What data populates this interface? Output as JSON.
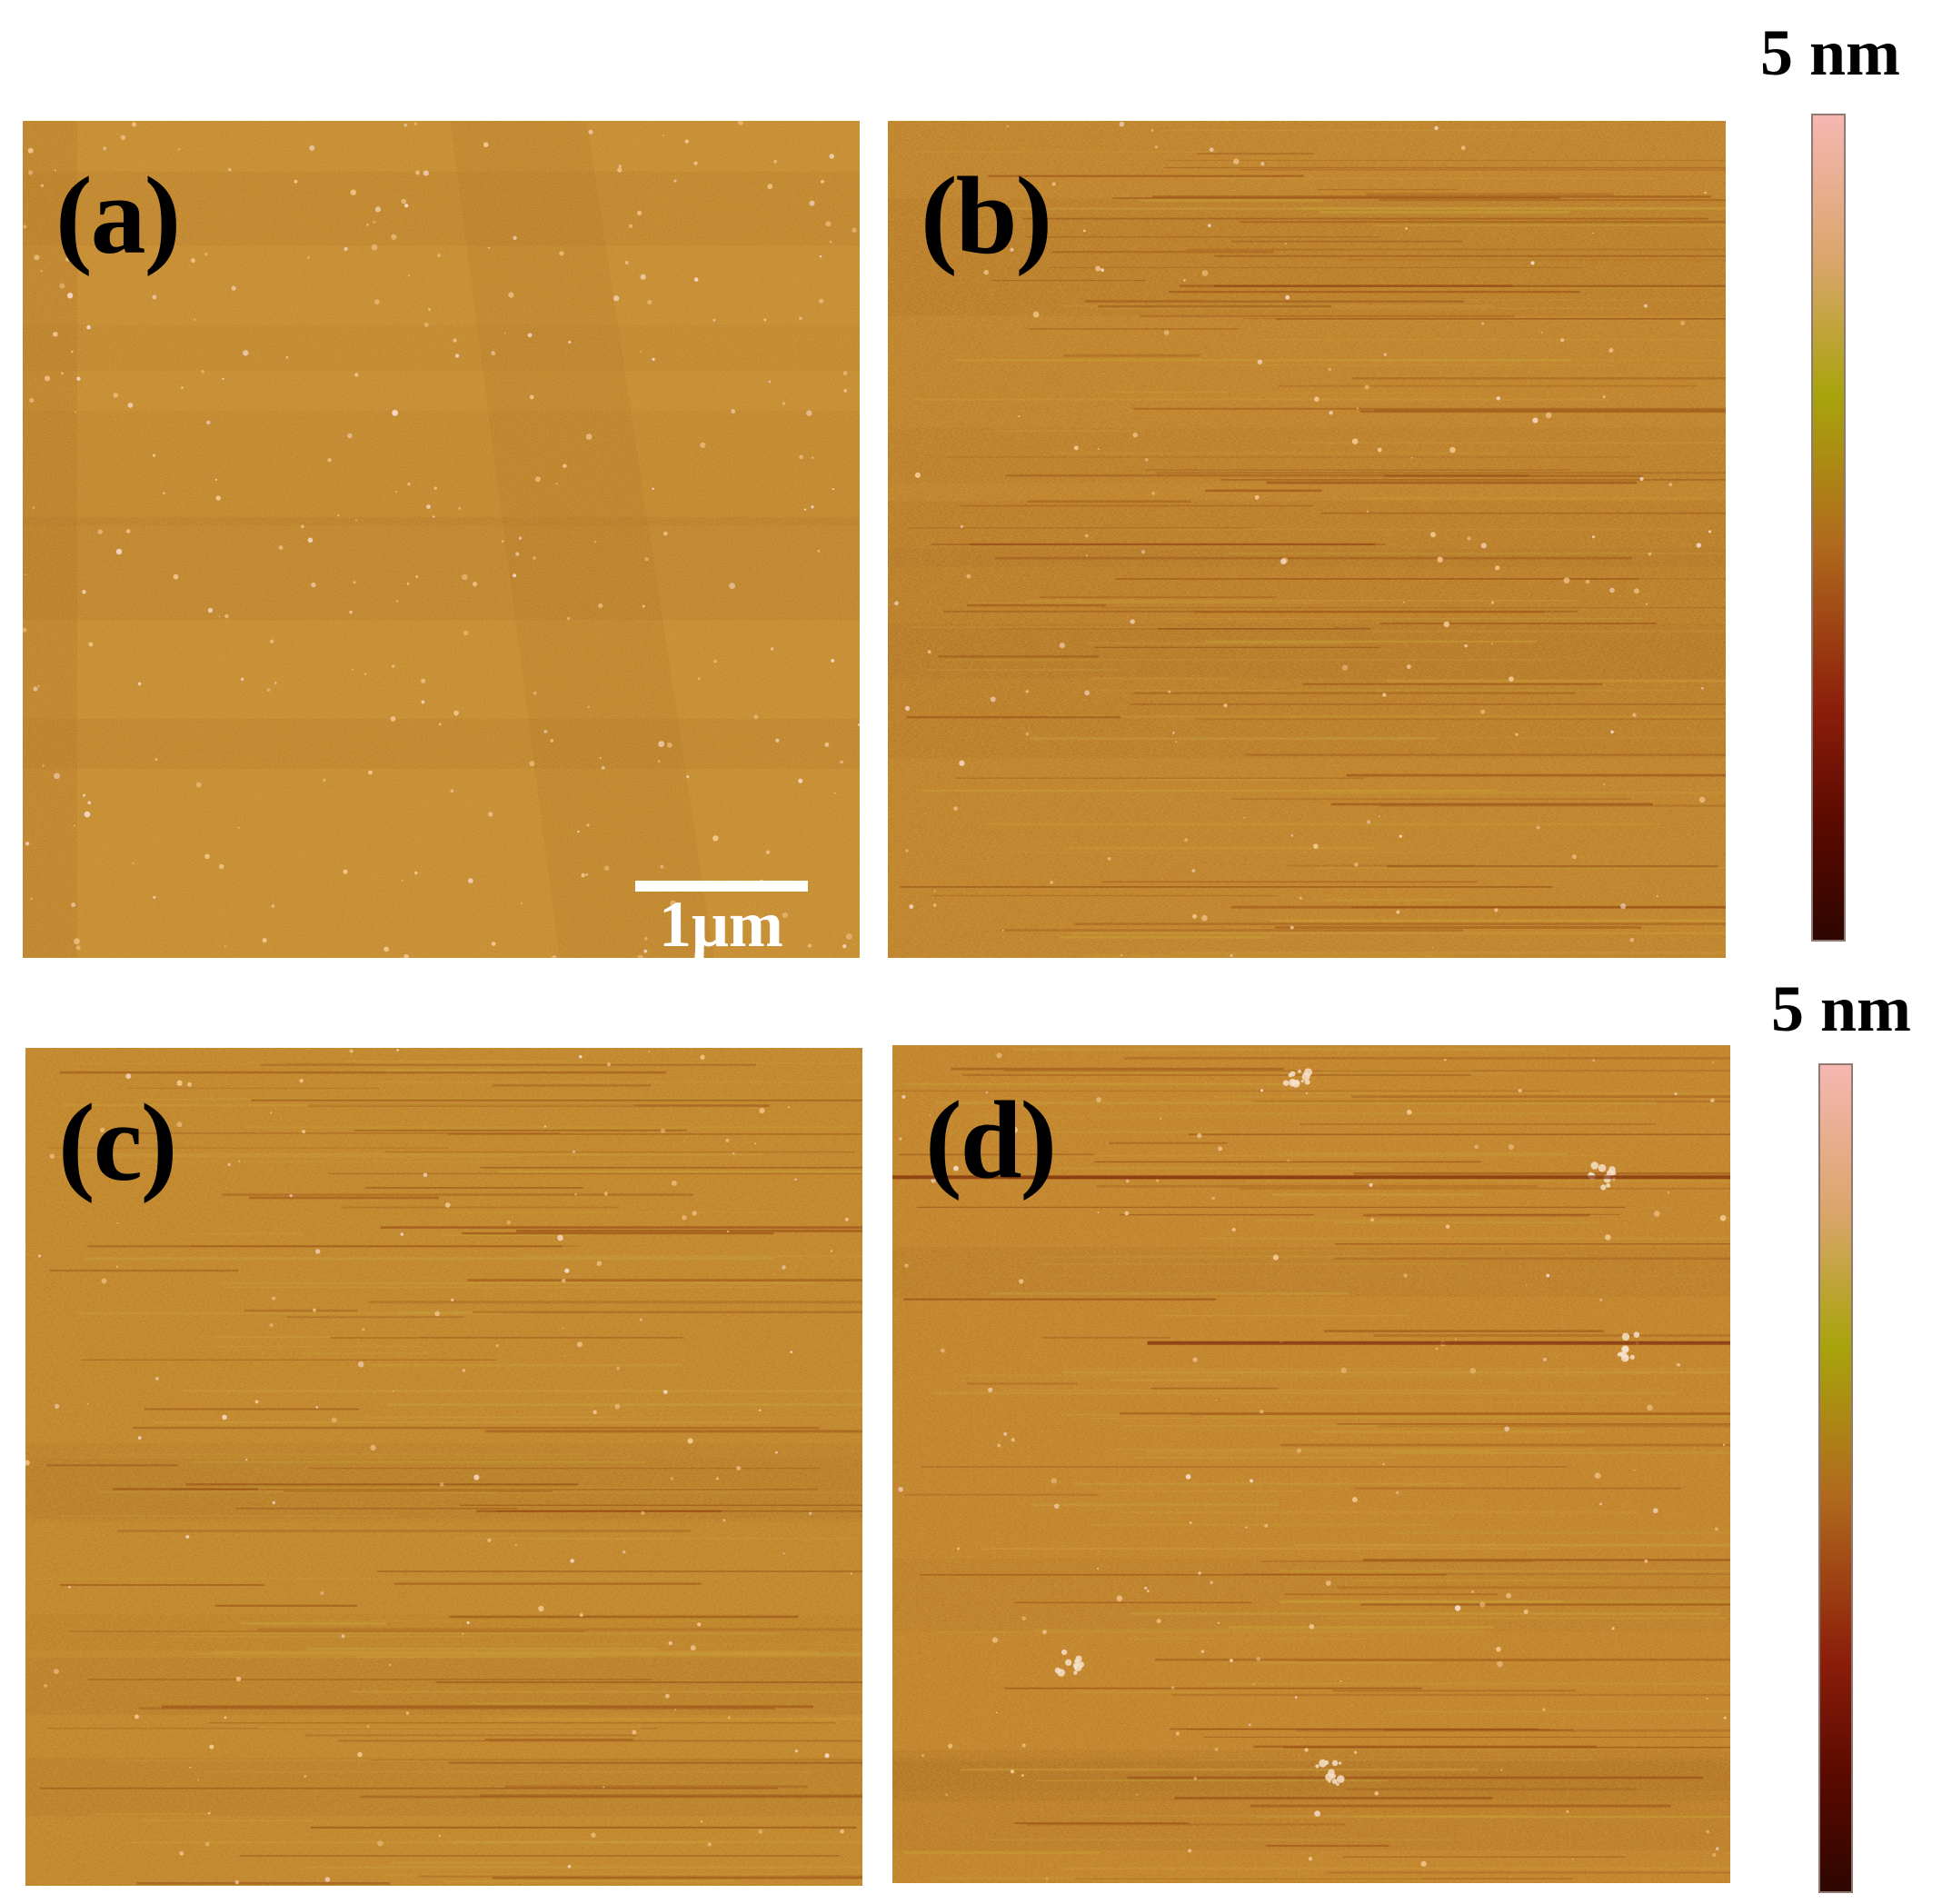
{
  "panels": [
    {
      "id": "a",
      "label": "(a)",
      "base_color": "#c47c2a",
      "noise_tint": "#b8932b"
    },
    {
      "id": "b",
      "label": "(b)",
      "base_color": "#bb6f22",
      "noise_tint": "#a5962a"
    },
    {
      "id": "c",
      "label": "(c)",
      "base_color": "#bd7322",
      "noise_tint": "#a89a2c"
    },
    {
      "id": "d",
      "label": "(d)",
      "base_color": "#be7021",
      "noise_tint": "#aa8f30"
    }
  ],
  "scale_bar": {
    "label": "1μm"
  },
  "colorbars": {
    "top_label": "5 nm",
    "bottom_label": "5 nm",
    "gradient": [
      "#f5b7b1",
      "#d9a56a",
      "#a8a40c",
      "#b06a1d",
      "#8c1e0b",
      "#5a0a00",
      "#2e0600"
    ]
  }
}
